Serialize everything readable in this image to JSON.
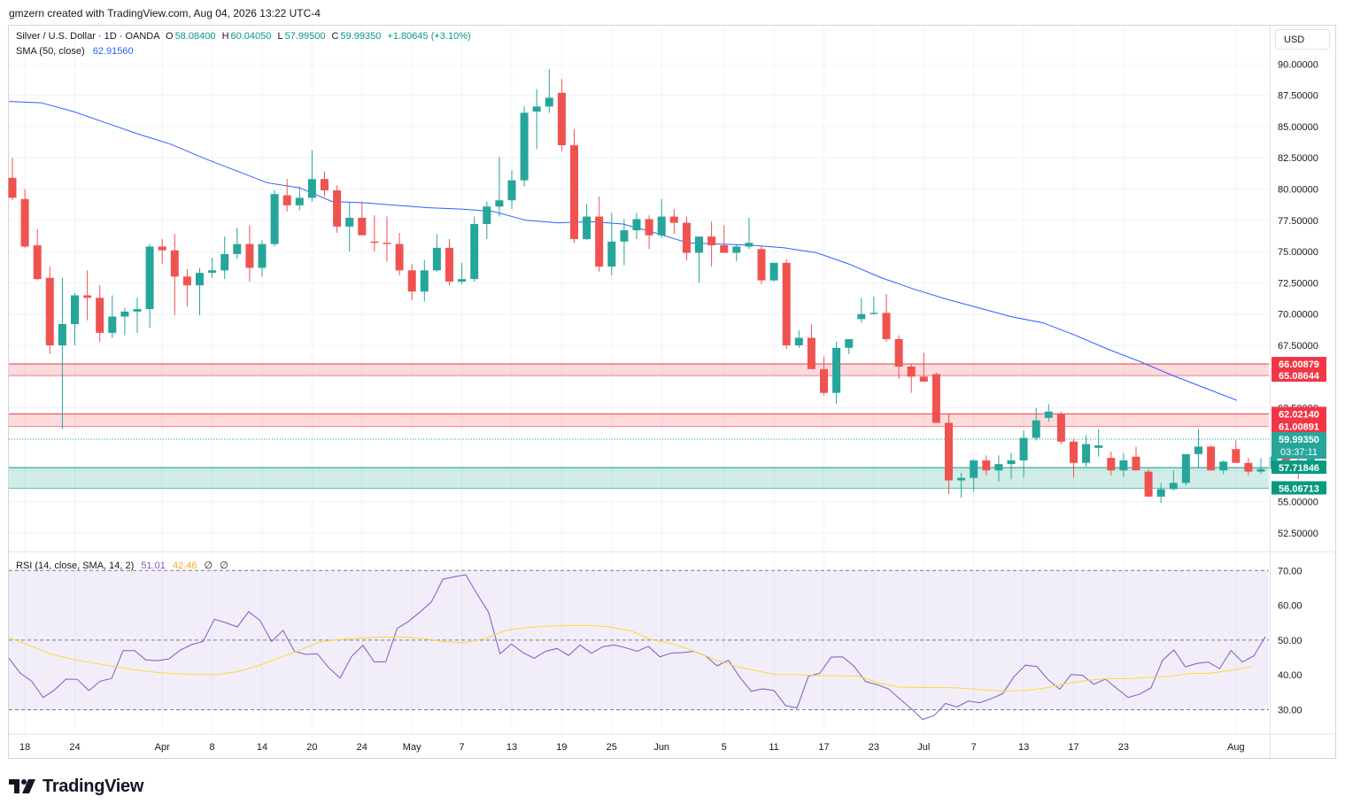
{
  "header": {
    "note": "gmzern created with TradingView.com, Aug 04, 2026 13:22 UTC-4"
  },
  "legend": {
    "symbol": "Silver / U.S. Dollar · 1D · OANDA",
    "open_label": "O",
    "open": "58.08400",
    "high_label": "H",
    "high": "60.04050",
    "low_label": "L",
    "low": "57.99500",
    "close_label": "C",
    "close": "59.99350",
    "change": "+1.80645 (+3.10%)",
    "sma_label": "SMA (50, close)",
    "sma_value": "62.91560"
  },
  "rsi_legend": {
    "label": "RSI (14, close, SMA, 14, 2)",
    "rsi": "51.01",
    "rsi_sma": "42.46",
    "extra1": "∅",
    "extra2": "∅"
  },
  "currency": "USD",
  "brand": {
    "name": "TradingView"
  },
  "colors": {
    "up": "#26a69a",
    "down": "#ef5350",
    "sma": "#2962ff",
    "rsi": "#7e57c2",
    "rsi_sma": "#fdd835",
    "resistance": "#f23645",
    "support": "#089981"
  },
  "chart_data": [
    {
      "type": "candlestick",
      "title": "Silver / U.S. Dollar · 1D · OANDA",
      "x_axis_labels": [
        "18",
        "24",
        "Apr",
        "8",
        "14",
        "20",
        "24",
        "May",
        "7",
        "13",
        "19",
        "25",
        "Jun",
        "5",
        "11",
        "17",
        "23",
        "Jul",
        "7",
        "13",
        "17",
        "23",
        "Aug"
      ],
      "y_ticks": [
        "90.00000",
        "87.50000",
        "85.00000",
        "82.50000",
        "80.00000",
        "77.50000",
        "75.00000",
        "72.50000",
        "70.00000",
        "67.50000",
        "65.00000",
        "62.50000",
        "60.00000",
        "57.50000",
        "55.00000",
        "52.50000"
      ],
      "ylim": [
        51.4,
        91.7
      ],
      "candles": [
        [
          80.9,
          82.5,
          79.1,
          79.3
        ],
        [
          79.2,
          80.0,
          75.3,
          75.4
        ],
        [
          75.5,
          76.8,
          72.7,
          72.8
        ],
        [
          72.9,
          73.8,
          66.8,
          67.5
        ],
        [
          67.5,
          72.9,
          60.8,
          69.2
        ],
        [
          69.2,
          71.7,
          67.5,
          71.5
        ],
        [
          71.5,
          73.5,
          69.5,
          71.3
        ],
        [
          71.3,
          72.3,
          67.8,
          68.5
        ],
        [
          68.5,
          71.5,
          68.1,
          69.8
        ],
        [
          69.8,
          70.5,
          68.3,
          70.2
        ],
        [
          70.2,
          71.3,
          68.5,
          70.4
        ],
        [
          70.4,
          75.6,
          68.9,
          75.4
        ],
        [
          75.4,
          76.0,
          74.0,
          75.1
        ],
        [
          75.1,
          76.4,
          69.9,
          73.0
        ],
        [
          73.0,
          73.6,
          70.6,
          72.3
        ],
        [
          72.3,
          73.7,
          69.9,
          73.3
        ],
        [
          73.3,
          74.5,
          72.9,
          73.5
        ],
        [
          73.5,
          76.2,
          72.8,
          74.8
        ],
        [
          74.8,
          76.9,
          74.4,
          75.6
        ],
        [
          75.6,
          77.1,
          72.6,
          73.7
        ],
        [
          73.7,
          75.9,
          73.0,
          75.6
        ],
        [
          75.6,
          79.9,
          75.4,
          79.6
        ],
        [
          79.5,
          80.8,
          78.2,
          78.7
        ],
        [
          78.7,
          80.2,
          78.3,
          79.3
        ],
        [
          79.3,
          83.1,
          79.0,
          80.8
        ],
        [
          80.8,
          81.4,
          79.4,
          79.9
        ],
        [
          79.9,
          80.3,
          76.5,
          77.0
        ],
        [
          77.0,
          78.9,
          75.0,
          77.7
        ],
        [
          77.7,
          79.0,
          76.4,
          76.3
        ],
        [
          75.8,
          77.9,
          75.0,
          75.7
        ],
        [
          75.7,
          77.8,
          74.2,
          75.6
        ],
        [
          75.6,
          76.5,
          73.1,
          73.5
        ],
        [
          73.5,
          74.0,
          71.1,
          71.8
        ],
        [
          71.8,
          74.3,
          71.0,
          73.5
        ],
        [
          73.5,
          76.4,
          73.4,
          75.3
        ],
        [
          75.3,
          76.0,
          72.3,
          72.6
        ],
        [
          72.6,
          74.1,
          72.4,
          72.8
        ],
        [
          72.8,
          77.8,
          72.6,
          77.2
        ],
        [
          77.2,
          79.0,
          76.0,
          78.6
        ],
        [
          78.6,
          82.6,
          77.8,
          79.1
        ],
        [
          79.1,
          81.5,
          78.4,
          80.7
        ],
        [
          80.7,
          86.6,
          80.2,
          86.1
        ],
        [
          86.2,
          88.0,
          83.2,
          86.6
        ],
        [
          86.6,
          89.6,
          86.1,
          87.3
        ],
        [
          87.7,
          88.8,
          83.0,
          83.5
        ],
        [
          83.5,
          84.8,
          75.7,
          76.0
        ],
        [
          76.0,
          78.8,
          75.9,
          77.8
        ],
        [
          77.8,
          79.4,
          73.4,
          73.8
        ],
        [
          73.8,
          78.1,
          73.1,
          75.8
        ],
        [
          75.8,
          77.6,
          73.9,
          76.7
        ],
        [
          76.7,
          78.1,
          76.0,
          77.6
        ],
        [
          77.6,
          77.9,
          75.2,
          76.3
        ],
        [
          76.3,
          79.2,
          76.1,
          77.8
        ],
        [
          77.8,
          78.4,
          76.4,
          77.3
        ],
        [
          77.3,
          77.8,
          74.3,
          74.9
        ],
        [
          74.9,
          75.8,
          72.5,
          76.2
        ],
        [
          76.2,
          77.4,
          73.8,
          75.5
        ],
        [
          75.5,
          77.1,
          75.0,
          74.9
        ],
        [
          74.9,
          75.6,
          74.2,
          75.4
        ],
        [
          75.4,
          77.7,
          75.2,
          75.7
        ],
        [
          75.2,
          75.5,
          72.4,
          72.7
        ],
        [
          72.7,
          74.0,
          72.6,
          74.1
        ],
        [
          74.1,
          74.4,
          67.2,
          67.5
        ],
        [
          67.5,
          68.7,
          67.3,
          68.1
        ],
        [
          68.1,
          69.2,
          65.7,
          65.6
        ],
        [
          65.6,
          66.6,
          63.5,
          63.7
        ],
        [
          63.7,
          67.8,
          62.8,
          67.3
        ],
        [
          67.3,
          67.9,
          66.8,
          68.0
        ],
        [
          69.6,
          71.3,
          69.3,
          70.0
        ],
        [
          70.0,
          71.4,
          70.0,
          70.1
        ],
        [
          70.1,
          71.6,
          67.8,
          68.0
        ],
        [
          68.0,
          68.3,
          64.8,
          65.8
        ],
        [
          65.8,
          66.0,
          63.7,
          65.0
        ],
        [
          65.0,
          66.9,
          64.8,
          64.6
        ],
        [
          65.2,
          65.3,
          61.3,
          61.3
        ],
        [
          61.3,
          62.0,
          55.6,
          56.7
        ],
        [
          56.7,
          57.3,
          55.3,
          56.9
        ],
        [
          56.9,
          58.4,
          55.8,
          58.3
        ],
        [
          58.3,
          58.7,
          57.1,
          57.5
        ],
        [
          57.5,
          58.7,
          56.6,
          58.0
        ],
        [
          58.0,
          58.9,
          56.8,
          58.3
        ],
        [
          58.3,
          60.7,
          56.9,
          60.1
        ],
        [
          60.1,
          62.5,
          59.9,
          61.5
        ],
        [
          61.7,
          62.8,
          61.4,
          62.2
        ],
        [
          62.0,
          62.2,
          59.6,
          59.8
        ],
        [
          59.8,
          60.0,
          56.9,
          58.1
        ],
        [
          58.1,
          60.3,
          57.8,
          59.6
        ],
        [
          59.3,
          60.8,
          58.6,
          59.5
        ],
        [
          58.5,
          59.0,
          57.1,
          57.5
        ],
        [
          57.5,
          58.9,
          57.0,
          58.3
        ],
        [
          58.6,
          59.4,
          57.6,
          57.5
        ],
        [
          57.4,
          57.6,
          55.4,
          55.4
        ],
        [
          55.4,
          56.5,
          54.9,
          56.0
        ],
        [
          56.0,
          57.5,
          55.9,
          56.5
        ],
        [
          56.5,
          58.7,
          56.3,
          58.8
        ],
        [
          58.8,
          60.8,
          57.7,
          59.4
        ],
        [
          59.4,
          59.5,
          57.5,
          57.5
        ],
        [
          57.5,
          58.3,
          57.2,
          58.2
        ],
        [
          59.2,
          59.9,
          58.1,
          58.1
        ],
        [
          58.1,
          58.5,
          57.1,
          57.4
        ],
        [
          57.4,
          58.5,
          57.2,
          57.6
        ],
        [
          57.6,
          59.0,
          57.5,
          58.6
        ],
        [
          58.7,
          58.9,
          57.3,
          57.5
        ],
        [
          58.3,
          58.9,
          56.8,
          58.0
        ],
        [
          58.1,
          60.0,
          58.0,
          59.99
        ]
      ],
      "sma_label": "SMA (50, close)",
      "sma_values": [
        87.0,
        86.9,
        86.2,
        85.3,
        84.4,
        83.6,
        82.5,
        81.5,
        80.5,
        80.1,
        79.0,
        78.9,
        78.7,
        78.5,
        78.4,
        78.2,
        77.5,
        77.3,
        77.4,
        77.2,
        76.5,
        75.7,
        75.6,
        75.5,
        75.3,
        74.9,
        74.0,
        72.9,
        72.0,
        71.2,
        70.5,
        69.8,
        69.3,
        68.3,
        67.2,
        66.2,
        65.1,
        64.1,
        63.1
      ],
      "price_levels": [
        {
          "kind": "resistance",
          "upper": "66.00879",
          "lower": "65.08644"
        },
        {
          "kind": "resistance",
          "upper": "62.02140",
          "lower": "61.00891"
        },
        {
          "kind": "support",
          "upper": "57.71846",
          "lower": "56.06713"
        }
      ],
      "last_price": "59.99350",
      "countdown": "03:37:11"
    },
    {
      "type": "line",
      "title": "RSI (14, close, SMA, 14, 2)",
      "y_ticks": [
        "70.00",
        "60.00",
        "50.00",
        "40.00",
        "30.00"
      ],
      "ylim": [
        23.5,
        72.7
      ],
      "bands": {
        "upper": 70,
        "middle": 50,
        "lower": 30
      },
      "series": [
        {
          "name": "RSI",
          "values": [
            44.8,
            40.5,
            38.2,
            33.5,
            35.7,
            38.8,
            38.7,
            35.5,
            38.2,
            39.0,
            47.0,
            47.0,
            44.3,
            44.1,
            44.6,
            47.1,
            48.7,
            49.6,
            56.0,
            55.0,
            53.8,
            58.2,
            55.6,
            49.6,
            52.8,
            46.8,
            45.9,
            46.1,
            42.1,
            39.1,
            45.3,
            48.5,
            43.7,
            43.8,
            53.4,
            55.4,
            58.1,
            61.0,
            67.5,
            68.2,
            68.8,
            63.2,
            58.0,
            46.1,
            48.9,
            46.4,
            44.8,
            46.8,
            47.6,
            45.6,
            48.6,
            46.2,
            48.1,
            48.6,
            47.8,
            46.8,
            48.2,
            45.2,
            46.3,
            46.4,
            46.8,
            45.5,
            42.6,
            44.2,
            39.3,
            35.3,
            36.0,
            35.5,
            31.2,
            30.5,
            39.6,
            40.5,
            45.1,
            45.2,
            42.5,
            38.1,
            37.2,
            36.0,
            33.1,
            30.3,
            27.2,
            28.3,
            31.8,
            30.8,
            32.5,
            32.0,
            33.2,
            34.6,
            39.5,
            42.8,
            42.4,
            38.6,
            35.9,
            40.1,
            39.9,
            37.3,
            38.8,
            36.1,
            33.5,
            34.5,
            36.3,
            44.2,
            47.2,
            42.3,
            43.3,
            43.7,
            41.8,
            47.0,
            43.7,
            45.5,
            51.0
          ]
        },
        {
          "name": "RSI SMA",
          "values": [
            50.7,
            48.5,
            46.0,
            44.6,
            43.5,
            42.5,
            41.5,
            40.8,
            40.3,
            40.2,
            40.1,
            40.9,
            42.6,
            44.8,
            47.0,
            49.5,
            50.2,
            50.6,
            50.9,
            50.9,
            50.5,
            49.6,
            49.2,
            50.5,
            52.8,
            53.6,
            54.0,
            54.2,
            54.2,
            53.8,
            52.7,
            50.1,
            49.0,
            47.0,
            44.6,
            42.6,
            41.3,
            40.1,
            40.1,
            39.8,
            39.8,
            39.6,
            37.7,
            36.5,
            36.4,
            36.4,
            36.2,
            35.7,
            35.4,
            35.5,
            36.2,
            37.5,
            38.4,
            38.9,
            38.9,
            39.3,
            39.6,
            40.4,
            40.5,
            41.3,
            42.4
          ]
        }
      ]
    }
  ]
}
